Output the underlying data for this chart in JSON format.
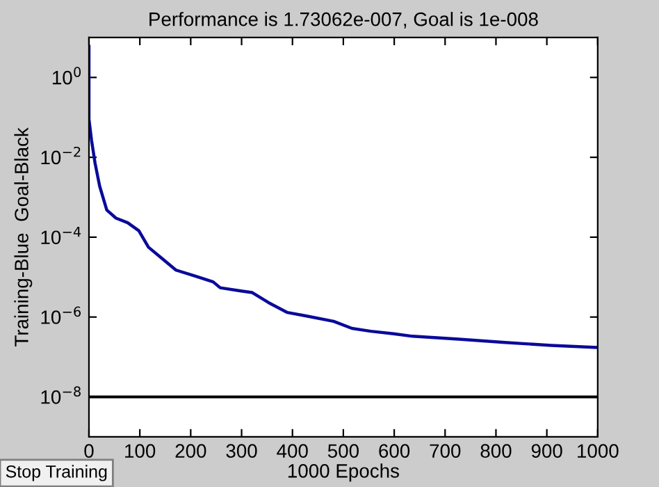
{
  "chart_data": {
    "type": "line",
    "title": "Performance is 1.73062e-007, Goal is 1e-008",
    "xlabel": "1000 Epochs",
    "ylabel": "Training-Blue  Goal-Black",
    "x": [
      0,
      0,
      5,
      12,
      21,
      35,
      53,
      76,
      98,
      117,
      144,
      171,
      208,
      244,
      258,
      299,
      321,
      353,
      390,
      426,
      481,
      517,
      554,
      599,
      636,
      727,
      818,
      909,
      1000
    ],
    "series": [
      {
        "color": "#0a0a9a",
        "values": [
          6,
          0.09,
          0.027,
          0.0071,
          0.0019,
          0.00048,
          0.0003,
          0.00023,
          0.000145,
          5.6e-05,
          2.9e-05,
          1.5e-05,
          1.07e-05,
          7.6e-06,
          5.4e-06,
          4.5e-06,
          4.1e-06,
          2.3e-06,
          1.3e-06,
          1.07e-06,
          7.8e-07,
          5.2e-07,
          4.4e-07,
          3.8e-07,
          3.3e-07,
          2.8e-07,
          2.3e-07,
          1.95e-07,
          1.73e-07
        ]
      }
    ],
    "log": "y",
    "xlim": [
      0,
      1000
    ],
    "ylim": [
      1e-09,
      10
    ],
    "xticks": [
      0,
      100,
      200,
      300,
      400,
      500,
      600,
      700,
      800,
      900,
      1000
    ],
    "yticks": [
      {
        "value": 1,
        "label": "10$^{0}$"
      },
      {
        "value": 0.01,
        "label": "10$^{−2}$"
      },
      {
        "value": 0.0001,
        "label": "10$^{−4}$"
      },
      {
        "value": 1e-06,
        "label": "10$^{−6}$"
      },
      {
        "value": 1e-08,
        "label": "10$^{−8}$"
      }
    ],
    "ref_lines": [
      {
        "axis": "y",
        "value": 1e-08,
        "color": "#000000"
      }
    ],
    "annotations": [
      "Stop Training"
    ],
    "grid": false,
    "legend": false,
    "line_style": "solid",
    "marker": "none"
  }
}
